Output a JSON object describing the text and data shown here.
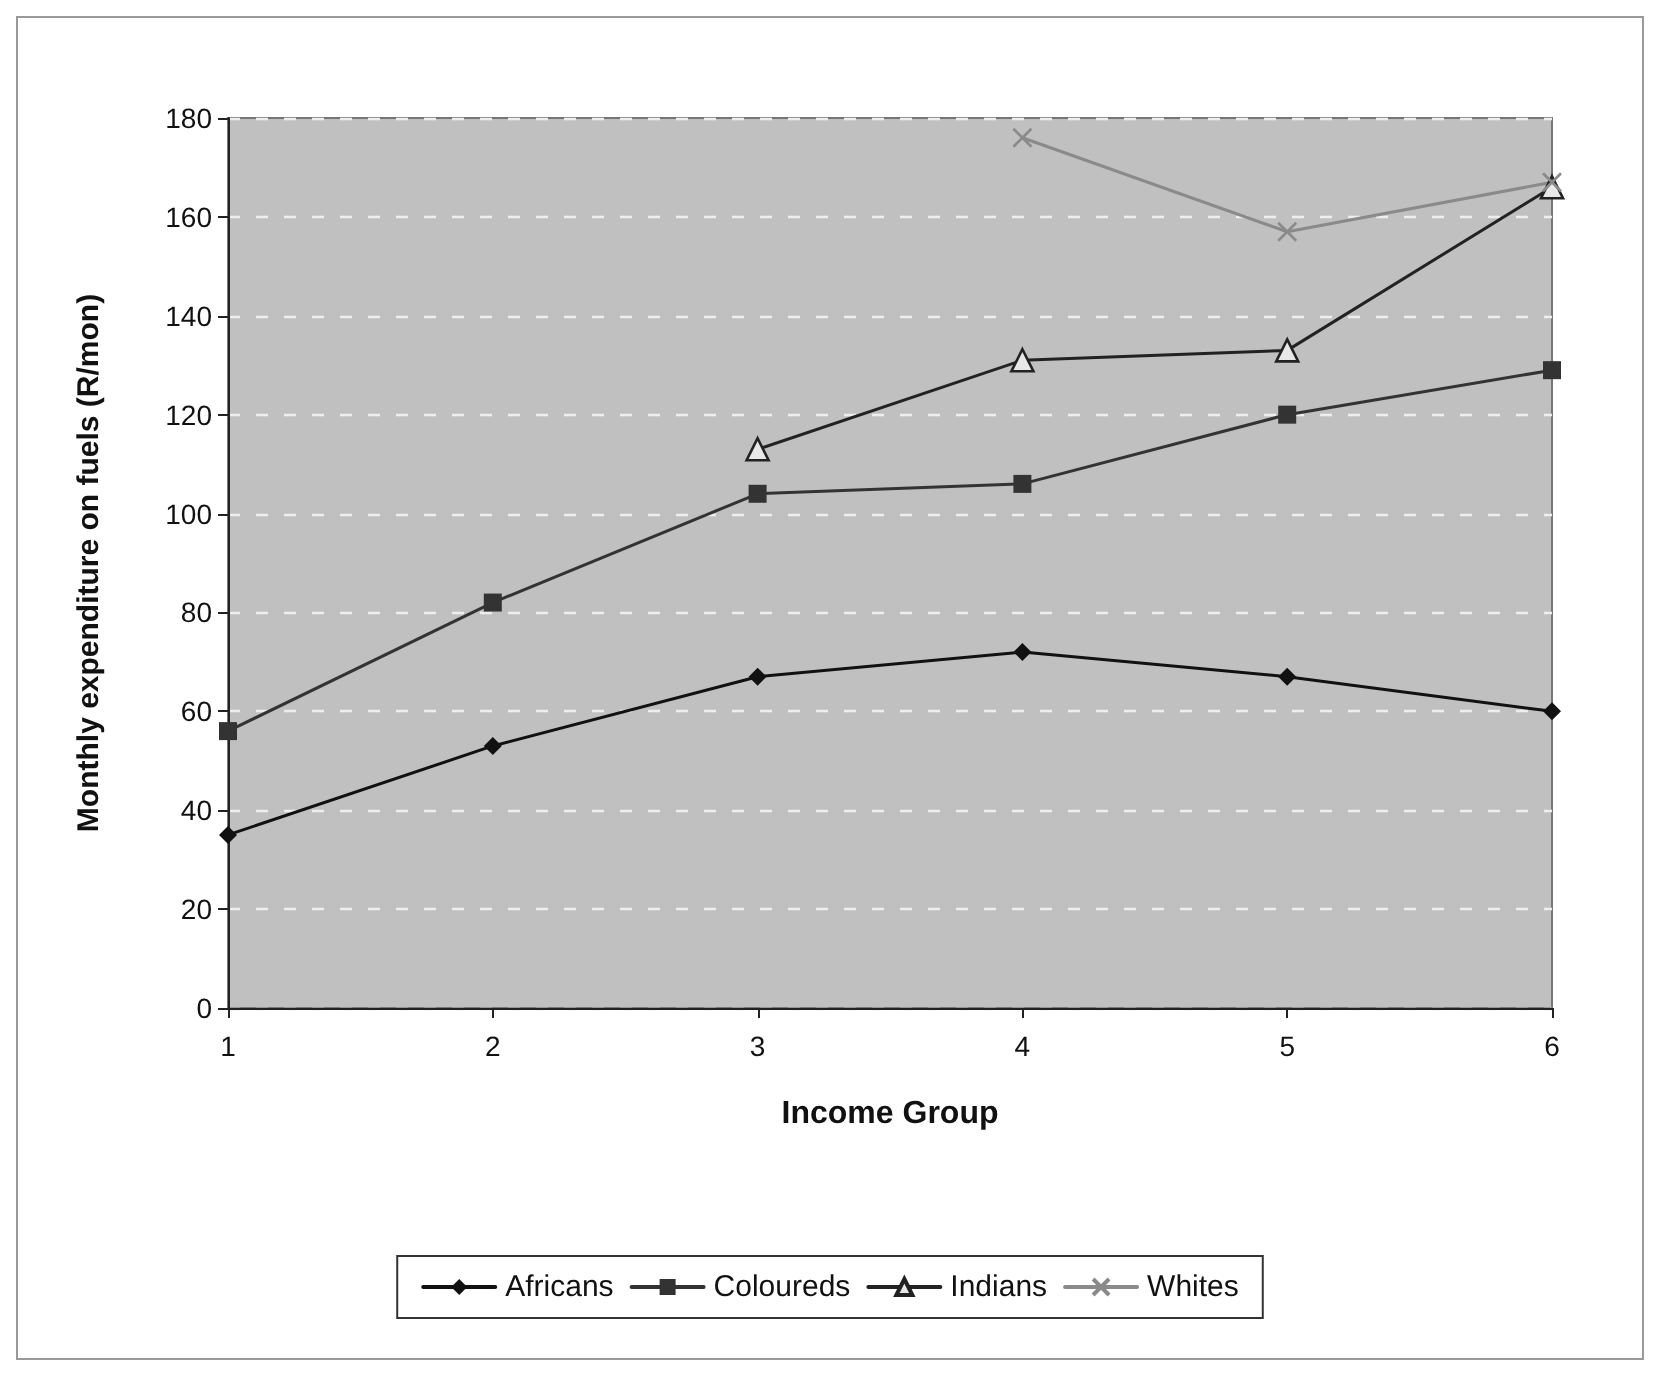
{
  "chart_data": {
    "type": "line",
    "xlabel": "Income Group",
    "ylabel": "Monthly expenditure on fuels (R/mon)",
    "categories": [
      "1",
      "2",
      "3",
      "4",
      "5",
      "6"
    ],
    "ylim": [
      0,
      180
    ],
    "yticks": [
      0,
      20,
      40,
      60,
      80,
      100,
      120,
      140,
      160,
      180
    ],
    "grid": "y",
    "legend": "bottom",
    "series": [
      {
        "name": "Africans",
        "color": "#111111",
        "marker": "diamond",
        "values": [
          35,
          53,
          67,
          72,
          67,
          60
        ]
      },
      {
        "name": "Coloureds",
        "color": "#333333",
        "marker": "square",
        "values": [
          56,
          82,
          104,
          106,
          120,
          129
        ]
      },
      {
        "name": "Indians",
        "color": "#222222",
        "marker": "triangle",
        "values": [
          null,
          null,
          113,
          131,
          133,
          166
        ]
      },
      {
        "name": "Whites",
        "color": "#8a8a8a",
        "marker": "cross",
        "values": [
          null,
          null,
          null,
          176,
          157,
          167
        ]
      }
    ]
  }
}
